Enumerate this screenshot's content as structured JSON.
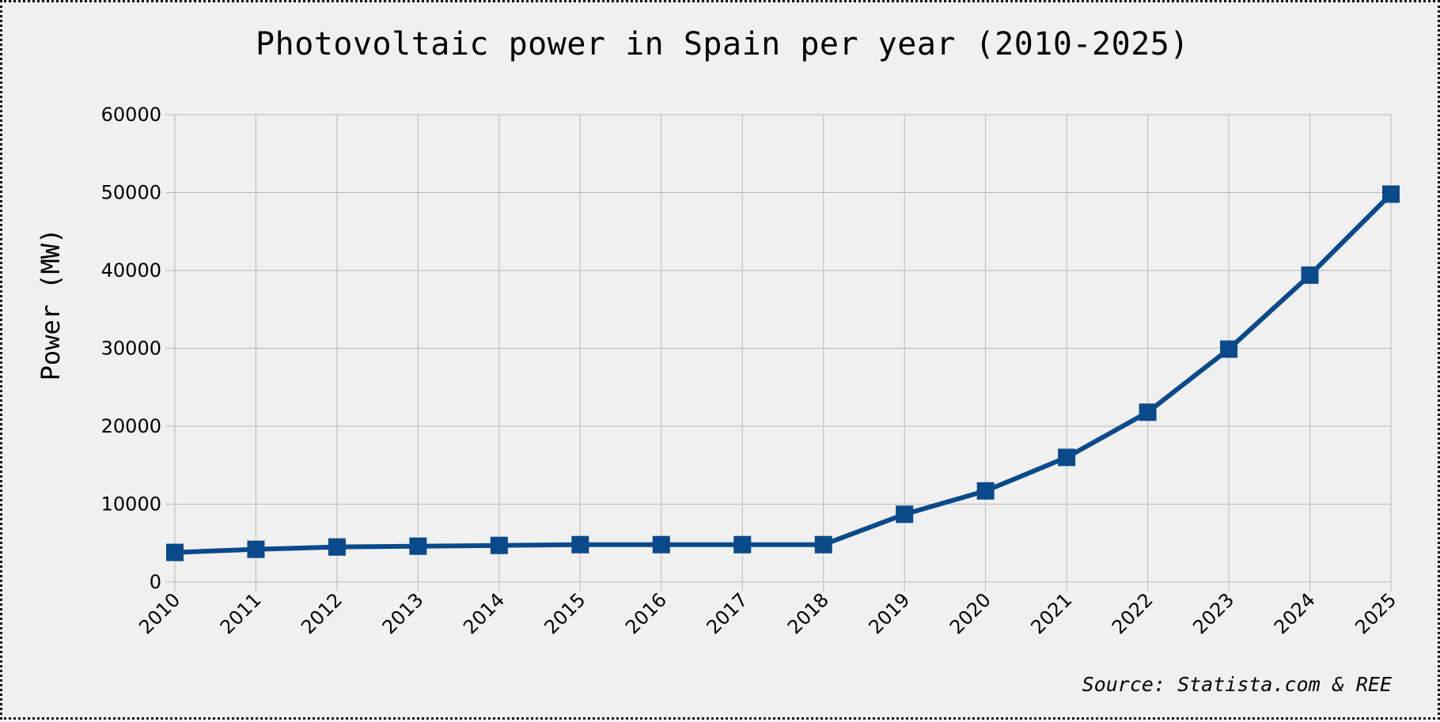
{
  "chart_data": {
    "type": "line",
    "title": "Photovoltaic power in Spain per year (2010-2025)",
    "xlabel": "",
    "ylabel": "Power (MW)",
    "source": "Source: Statista.com & REE",
    "categories": [
      "2010",
      "2011",
      "2012",
      "2013",
      "2014",
      "2015",
      "2016",
      "2017",
      "2018",
      "2019",
      "2020",
      "2021",
      "2022",
      "2023",
      "2024",
      "2025"
    ],
    "series": [
      {
        "values": [
          3800,
          4200,
          4500,
          4600,
          4700,
          4800,
          4800,
          4800,
          4800,
          8700,
          11700,
          16000,
          21800,
          29900,
          39400,
          49800
        ],
        "color": "#0a4a8a",
        "marker": "square"
      }
    ],
    "ylim": [
      0,
      60000
    ],
    "yticks": [
      0,
      10000,
      20000,
      30000,
      40000,
      50000,
      60000
    ],
    "grid": true,
    "legend": "none"
  }
}
